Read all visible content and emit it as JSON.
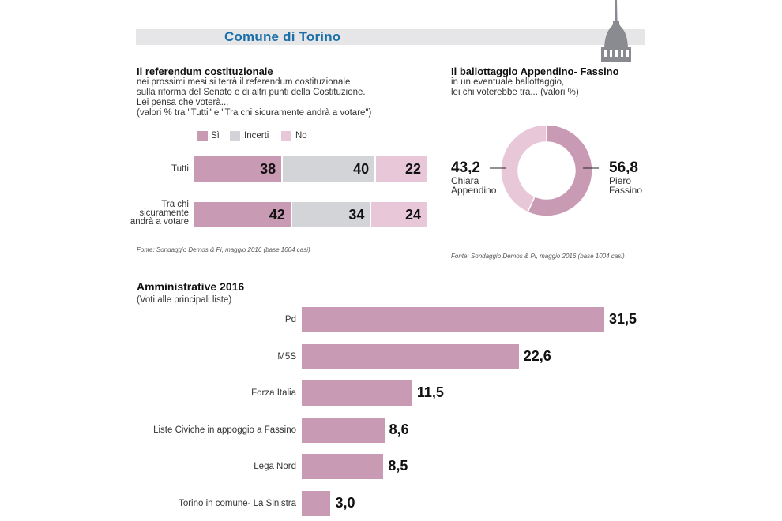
{
  "header": {
    "title": "Comune di Torino"
  },
  "referendum": {
    "title": "Il referendum costituzionale",
    "description": [
      "nei prossimi mesi si terrà il referendum costituzionale",
      "sulla riforma del Senato e di altri punti della Costituzione.",
      "Lei pensa che voterà...",
      "(valori %  tra \"Tutti\" e \"Tra chi sicuramente andrà a votare\")"
    ],
    "source": "Fonte: Sondaggio Demos & Pi, maggio 2016 (base 1004 casi)"
  },
  "ballottaggio": {
    "title": "Il ballottaggio Appendino- Fassino",
    "description": [
      "in un eventuale ballottaggio,",
      "lei chi voterebbe tra... (valori %)"
    ],
    "left_value": "43,2",
    "left_name": [
      "Chiara",
      "Appendino"
    ],
    "right_value": "56,8",
    "right_name": [
      "Piero",
      "Fassino"
    ],
    "source": "Fonte: Sondaggio Demos & Pi, maggio 2016 (base 1004 casi)"
  },
  "amministrative": {
    "title": "Amministrative 2016",
    "subtitle": "(Voti alle principali liste)"
  },
  "colors": {
    "si": "#c99ab4",
    "incerti": "#d3d4d8",
    "no": "#e8c8d8",
    "header_band": "#e6e6e9",
    "title_blue": "#1b6fa8",
    "mole": "#8a8b90"
  },
  "chart_data": [
    {
      "type": "bar",
      "orientation": "horizontal",
      "stacked": true,
      "title": "Il referendum costituzionale",
      "legend": [
        "Sì",
        "Incerti",
        "No"
      ],
      "legend_placement": "top",
      "categories": [
        "Tutti",
        "Tra chi sicuramente andrà a votare"
      ],
      "category_labels": [
        [
          "Tutti"
        ],
        [
          "Tra chi",
          "sicuramente",
          "andrà a votare"
        ]
      ],
      "series": [
        {
          "name": "Sì",
          "values": [
            38,
            42
          ],
          "labels": [
            "38",
            "42"
          ]
        },
        {
          "name": "Incerti",
          "values": [
            40,
            34
          ],
          "labels": [
            "40",
            "34"
          ]
        },
        {
          "name": "No",
          "values": [
            22,
            24
          ],
          "labels": [
            "22",
            "24"
          ]
        }
      ],
      "xlim": [
        0,
        100
      ]
    },
    {
      "type": "pie",
      "donut": true,
      "title": "Il ballottaggio Appendino- Fassino",
      "slices": [
        {
          "name": "Piero Fassino",
          "value": 56.8,
          "label": "56,8",
          "color": "#c99ab4"
        },
        {
          "name": "Chiara Appendino",
          "value": 43.2,
          "label": "43,2",
          "color": "#e8c8d8"
        }
      ]
    },
    {
      "type": "bar",
      "orientation": "horizontal",
      "title": "Amministrative 2016",
      "categories": [
        "Pd",
        "M5S",
        "Forza Italia",
        "Liste Civiche in appoggio a Fassino",
        "Lega Nord",
        "Torino in comune- La Sinistra"
      ],
      "values": [
        31.5,
        22.6,
        11.5,
        8.6,
        8.5,
        3.0
      ],
      "value_labels": [
        "31,5",
        "22,6",
        "11,5",
        "8,6",
        "8,5",
        "3,0"
      ],
      "xlim": [
        0,
        31.5
      ]
    }
  ]
}
